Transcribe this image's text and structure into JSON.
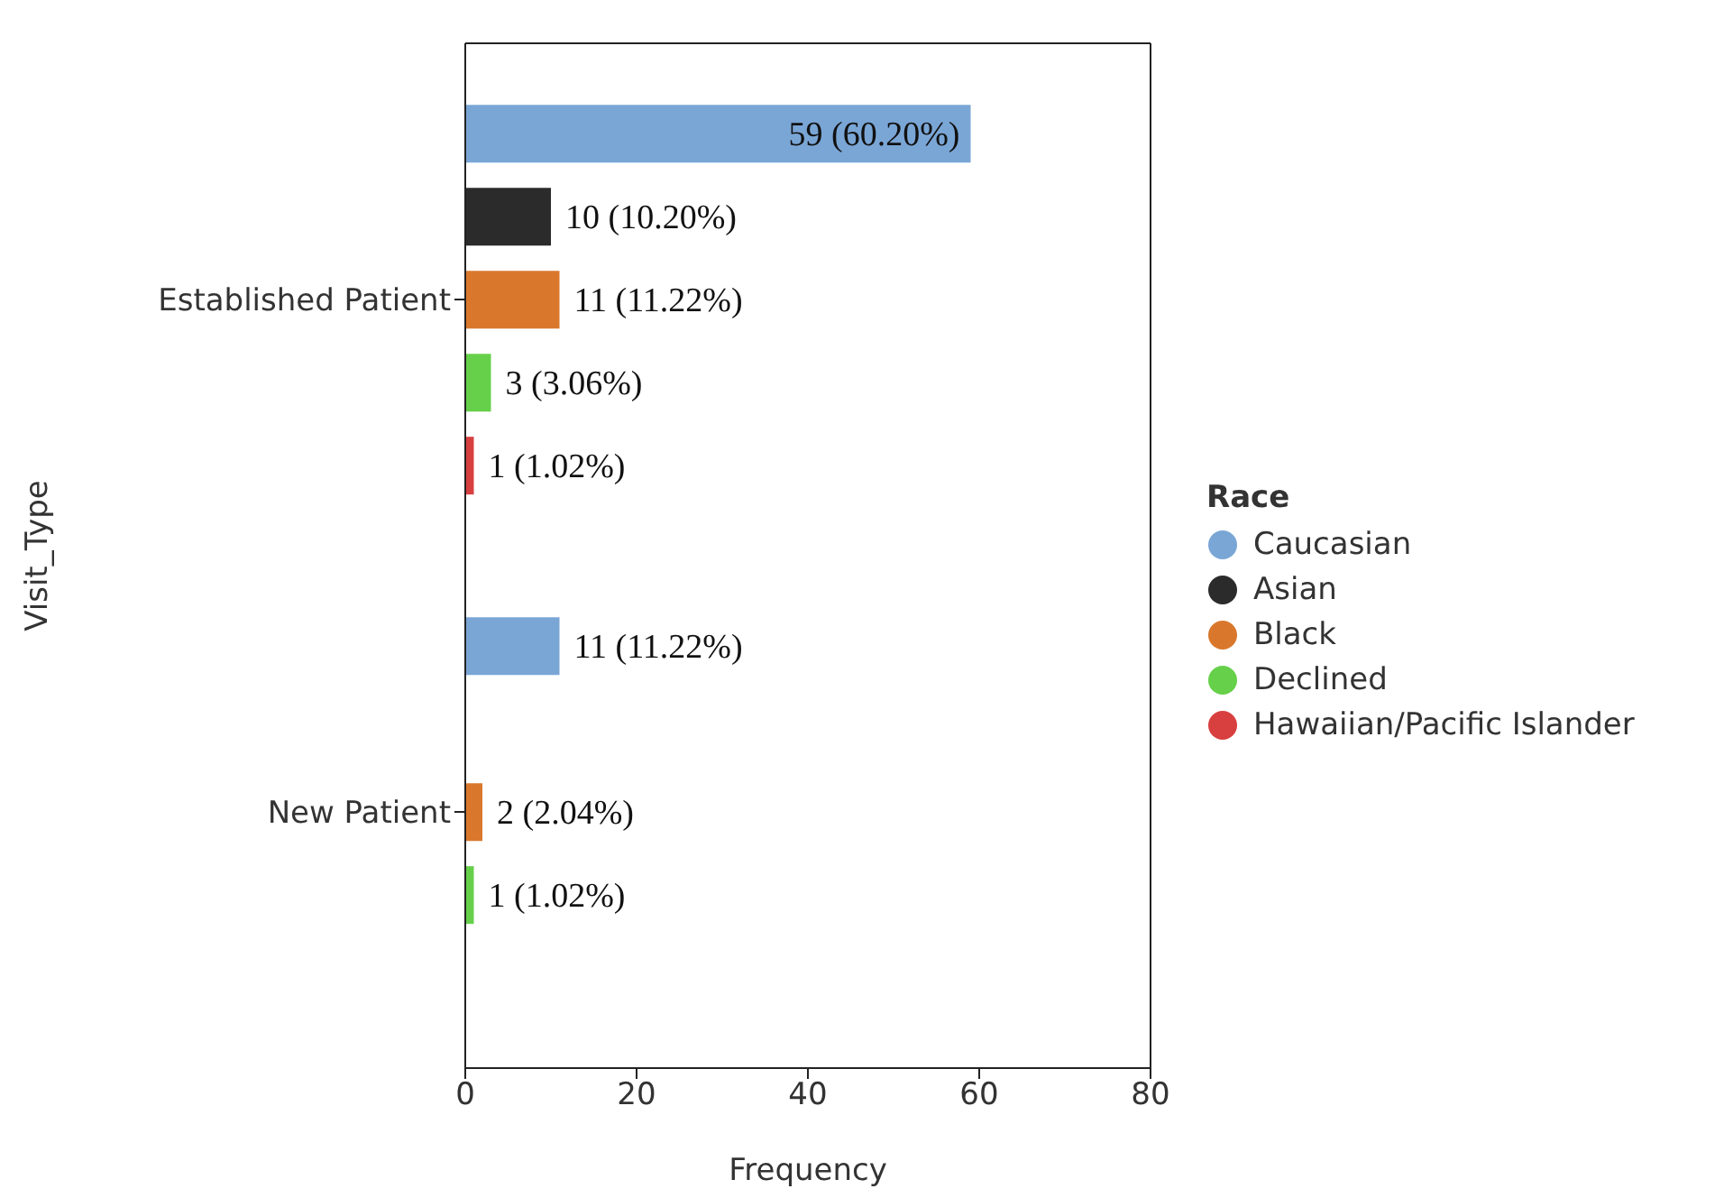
{
  "chart_data": {
    "type": "bar",
    "orientation": "horizontal",
    "xlabel": "Frequency",
    "ylabel": "Visit_Type",
    "legend_title": "Race",
    "legend": "right",
    "categories": [
      "Established Patient",
      "New Patient"
    ],
    "xlim": [
      0,
      80
    ],
    "xticks": [
      0,
      20,
      40,
      60,
      80
    ],
    "series": [
      {
        "name": "Caucasian",
        "color": "#7aa6d6",
        "values": [
          59,
          11
        ],
        "value_labels": [
          "59 (60.20%)",
          "11 (11.22%)"
        ]
      },
      {
        "name": "Asian",
        "color": "#2b2b2b",
        "values": [
          10,
          null
        ],
        "value_labels": [
          "10 (10.20%)",
          null
        ]
      },
      {
        "name": "Black",
        "color": "#d9782d",
        "values": [
          11,
          2
        ],
        "value_labels": [
          "11 (11.22%)",
          "2 (2.04%)"
        ]
      },
      {
        "name": "Declined",
        "color": "#66d04a",
        "values": [
          3,
          1
        ],
        "value_labels": [
          "3 (3.06%)",
          "1 (1.02%)"
        ]
      },
      {
        "name": "Hawaiian/Pacific Islander",
        "color": "#d84040",
        "values": [
          1,
          null
        ],
        "value_labels": [
          "1 (1.02%)",
          null
        ]
      }
    ]
  }
}
